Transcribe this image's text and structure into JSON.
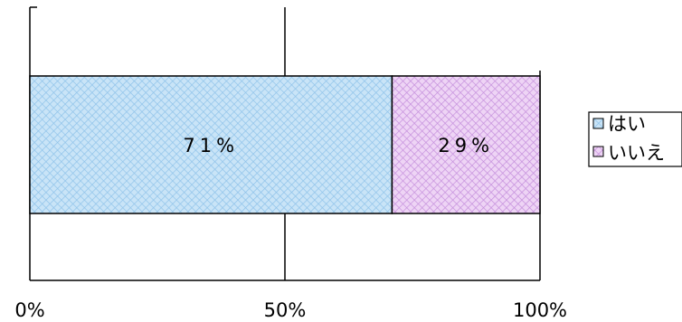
{
  "chart_data": {
    "type": "bar",
    "orientation": "horizontal",
    "stacked": true,
    "percent_stacked": true,
    "categories": [
      ""
    ],
    "series": [
      {
        "name": "はい",
        "values": [
          71
        ],
        "label": "71%",
        "color": "#c9e4f7",
        "pattern_color": "#8fc3ea"
      },
      {
        "name": "いいえ",
        "values": [
          29
        ],
        "label": "29%",
        "color": "#eed4f5",
        "pattern_color": "#c58fdc"
      }
    ],
    "x_ticks": [
      "0%",
      "50%",
      "100%"
    ],
    "xlim": [
      0,
      100
    ],
    "gridlines": true,
    "legend_position": "right",
    "title": "",
    "xlabel": "",
    "ylabel": ""
  }
}
